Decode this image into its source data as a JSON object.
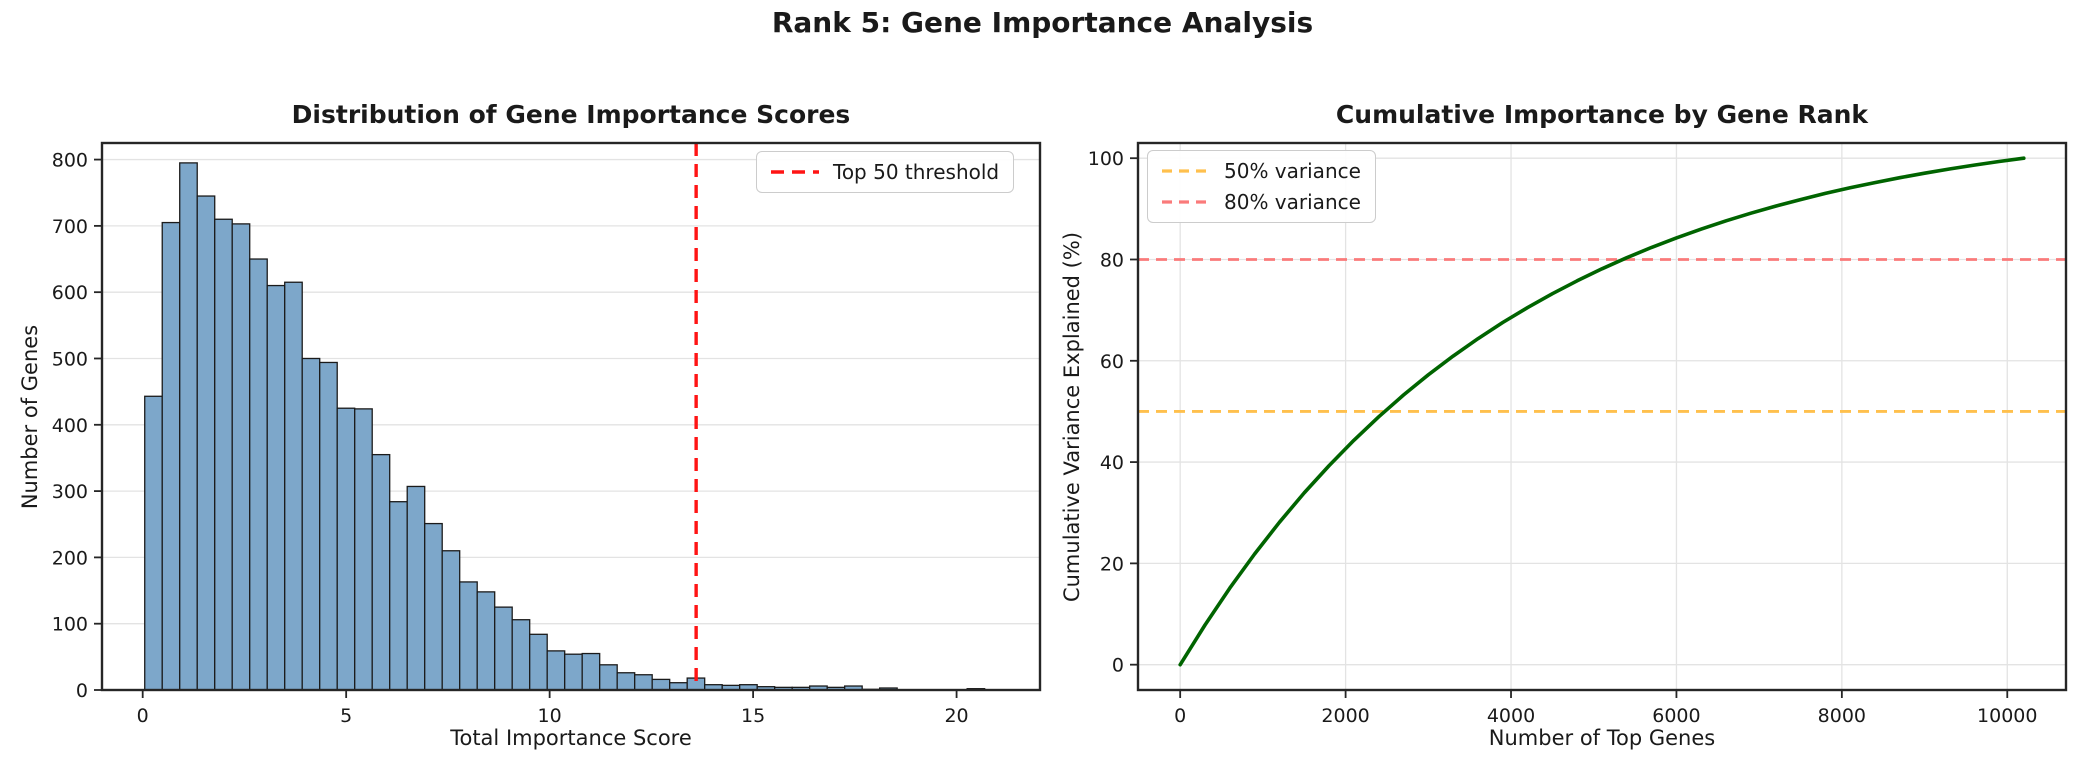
{
  "figure": {
    "title": "Rank 5: Gene Importance Analysis",
    "background": "#ffffff",
    "text_color": "#1a1a1a",
    "grid_color": "#e3e3e3",
    "spine_color": "#262626"
  },
  "chart_data": [
    {
      "type": "bar",
      "title": "Distribution of Gene Importance Scores",
      "xlabel": "Total Importance Score",
      "ylabel": "Number of Genes",
      "xlim": [
        -1.0,
        22.05
      ],
      "ylim": [
        0,
        825
      ],
      "xticks": [
        0,
        5,
        10,
        15,
        20
      ],
      "yticks": [
        0,
        100,
        200,
        300,
        400,
        500,
        600,
        700,
        800
      ],
      "grid": "y",
      "bin_start": 0.05,
      "bin_width": 0.43,
      "counts": [
        443,
        705,
        795,
        745,
        710,
        703,
        650,
        610,
        615,
        500,
        494,
        425,
        424,
        355,
        284,
        307,
        251,
        210,
        163,
        148,
        125,
        106,
        84,
        59,
        54,
        55,
        38,
        26,
        23,
        16,
        11,
        18,
        8,
        7,
        8,
        5,
        4,
        4,
        6,
        4,
        6,
        1,
        3,
        0,
        0,
        0,
        0,
        2
      ],
      "bar_color": "#7da7ca",
      "bar_edge_color": "#1b1b1b",
      "threshold_line": {
        "x": 13.6,
        "color": "#ff1414",
        "label": "Top 50 threshold"
      },
      "legend_position": "top-right"
    },
    {
      "type": "line",
      "title": "Cumulative Importance by Gene Rank",
      "xlabel": "Number of Top Genes",
      "ylabel": "Cumulative Variance Explained (%)",
      "xlim": [
        -510,
        10710
      ],
      "ylim": [
        -5,
        103
      ],
      "xticks": [
        0,
        2000,
        4000,
        6000,
        8000,
        10000
      ],
      "yticks": [
        0,
        20,
        40,
        60,
        80,
        100
      ],
      "grid": "both",
      "line_color": "#006400",
      "x": [
        0,
        300,
        600,
        900,
        1200,
        1500,
        1800,
        2100,
        2400,
        2700,
        3000,
        3300,
        3600,
        3900,
        4200,
        4500,
        4800,
        5100,
        5400,
        5700,
        6000,
        6300,
        6600,
        6900,
        7200,
        7500,
        7800,
        8100,
        8400,
        8700,
        9000,
        9300,
        9600,
        9900,
        10200
      ],
      "y": [
        0,
        7.84,
        15.11,
        21.85,
        28.11,
        33.92,
        39.31,
        44.3,
        48.94,
        53.24,
        57.23,
        60.93,
        64.37,
        67.55,
        70.51,
        73.25,
        75.8,
        78.16,
        80.35,
        82.38,
        84.27,
        86.01,
        87.64,
        89.14,
        90.54,
        91.83,
        93.04,
        94.15,
        95.18,
        96.14,
        97.03,
        97.86,
        98.63,
        99.34,
        100.0
      ],
      "hlines": [
        {
          "y": 50,
          "color": "#ffc04d",
          "label": "50% variance"
        },
        {
          "y": 80,
          "color": "#fa7a7a",
          "label": "80% variance"
        }
      ],
      "legend_position": "top-left"
    }
  ]
}
